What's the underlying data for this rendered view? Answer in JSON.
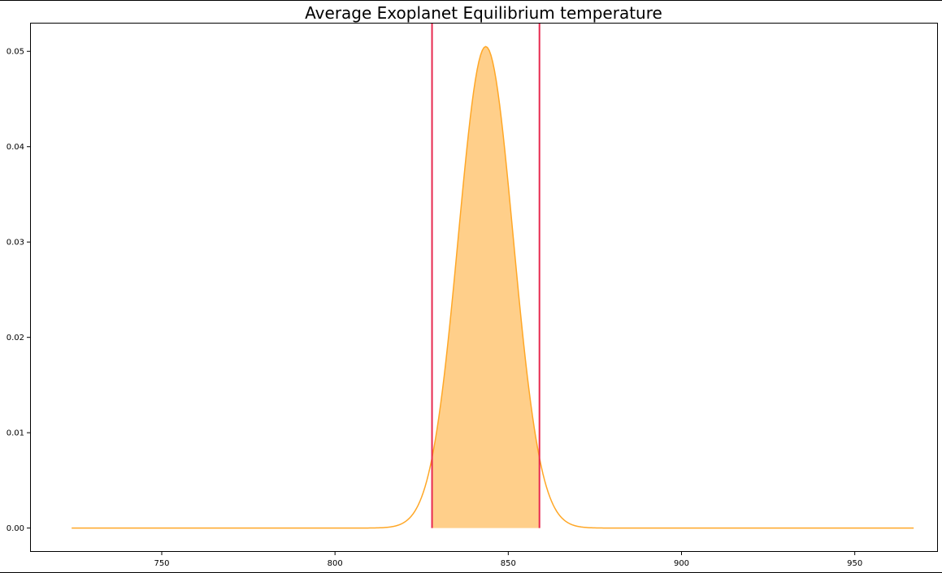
{
  "chart_data": {
    "type": "area",
    "title": "Average Exoplanet Equilibrium temperature",
    "xlabel": "",
    "ylabel": "",
    "xlim": [
      712,
      974
    ],
    "ylim": [
      -0.0025,
      0.053
    ],
    "x_ticks": [
      750,
      800,
      850,
      900,
      950
    ],
    "y_ticks": [
      0.0,
      0.01,
      0.02,
      0.03,
      0.04,
      0.05
    ],
    "x_tick_labels": [
      "750",
      "800",
      "850",
      "900",
      "950"
    ],
    "y_tick_labels": [
      "0.00",
      "0.01",
      "0.02",
      "0.03",
      "0.04",
      "0.05"
    ],
    "grid": false,
    "series": [
      {
        "kind": "normal_pdf",
        "mean": 843.5,
        "std": 7.9,
        "x_range": [
          724,
          967
        ],
        "color": "#FFA726"
      }
    ],
    "shaded_interval": {
      "x_start": 828,
      "x_end": 859,
      "fill_color": "#FFCF8A"
    },
    "vertical_lines": [
      {
        "x": 828,
        "color": "#E8294F"
      },
      {
        "x": 859,
        "color": "#E8294F"
      }
    ]
  }
}
